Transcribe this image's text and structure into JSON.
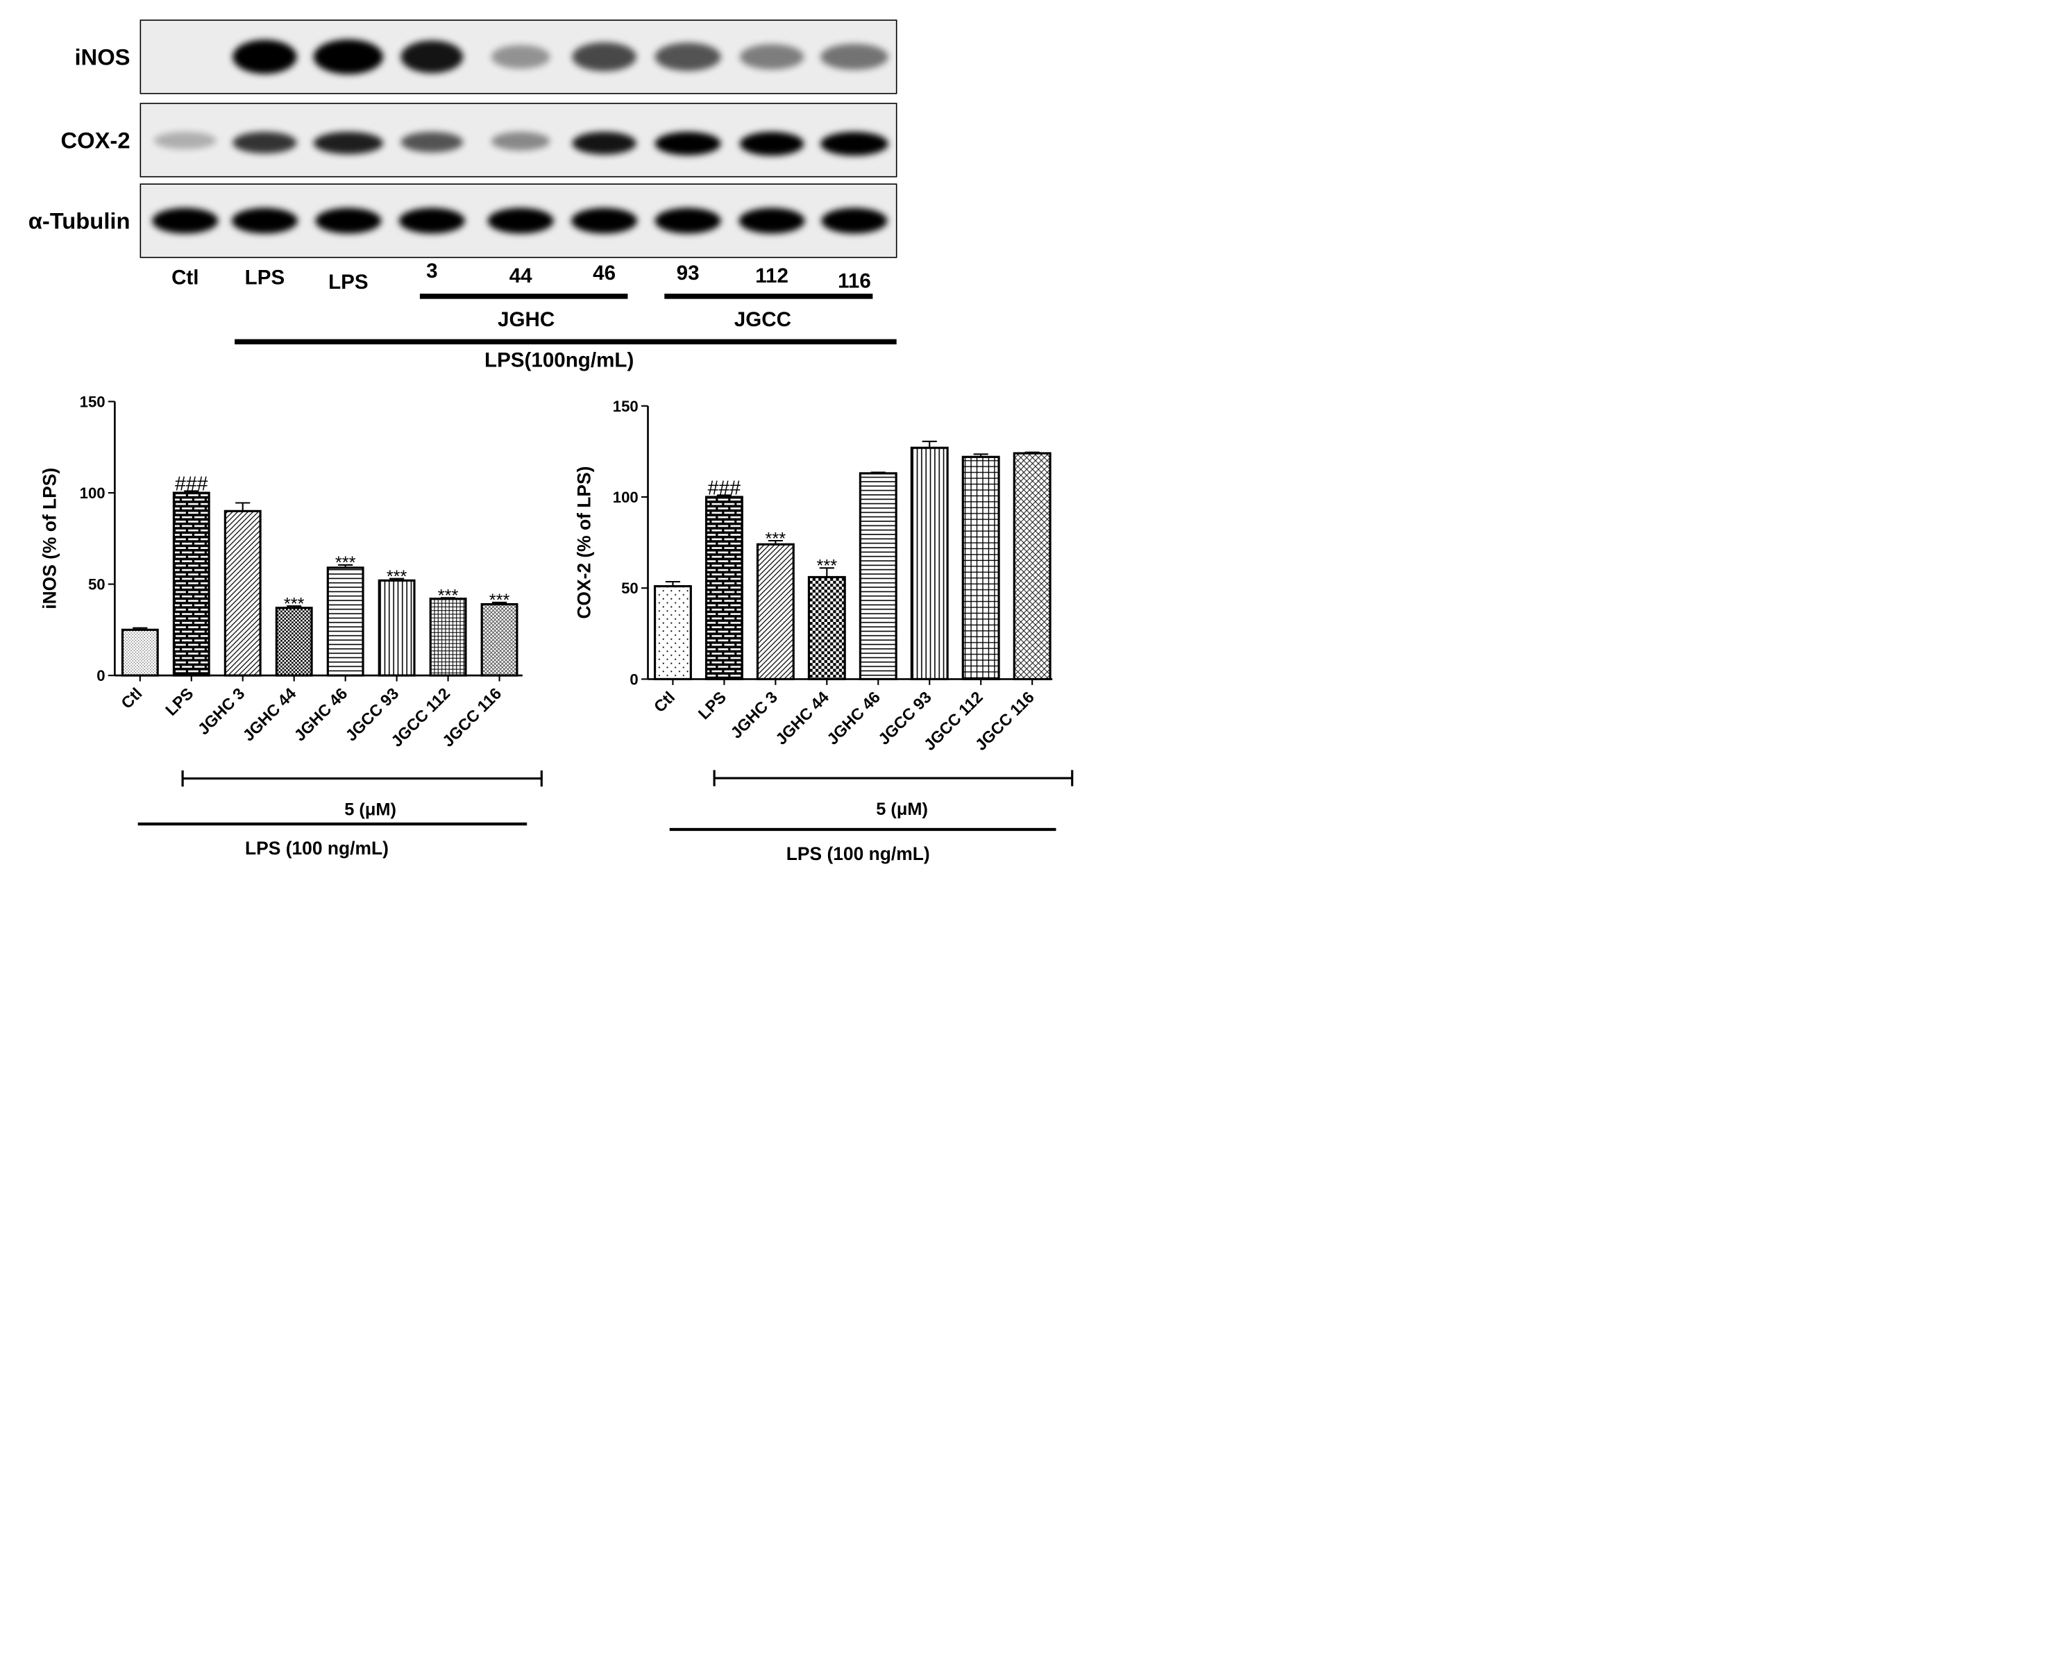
{
  "blot": {
    "rows": [
      {
        "label": "iNOS",
        "intensity": [
          0.0,
          0.95,
          1.0,
          0.85,
          0.25,
          0.6,
          0.55,
          0.35,
          0.4
        ]
      },
      {
        "label": "COX-2",
        "intensity": [
          0.12,
          0.7,
          0.8,
          0.55,
          0.3,
          0.85,
          0.95,
          1.0,
          1.0
        ]
      },
      {
        "label": "α-Tubulin",
        "intensity": [
          1.0,
          1.0,
          1.0,
          1.0,
          0.95,
          1.0,
          1.0,
          1.0,
          1.0
        ]
      }
    ],
    "lanes": [
      "Ctl",
      "LPS",
      "LPS",
      "3",
      "44",
      "46",
      "93",
      "112",
      "116"
    ],
    "groups": [
      "JGHC",
      "JGCC"
    ],
    "treatment_label": "LPS(100ng/mL)"
  },
  "chart_data": [
    {
      "type": "bar",
      "categories": [
        "Ctl",
        "LPS",
        "JGHC 3",
        "JGHC 44",
        "JGHC 46",
        "JGCC 93",
        "JGCC 112",
        "JGCC 116"
      ],
      "values": [
        25,
        100,
        90,
        37,
        59,
        52,
        42,
        39
      ],
      "errors": [
        1,
        1,
        4.5,
        1,
        1.5,
        1,
        0.5,
        1
      ],
      "annotations": [
        "",
        "###",
        "",
        "***",
        "***",
        "***",
        "***",
        "***"
      ],
      "patterns": [
        "dots-fine",
        "brick",
        "diag-right",
        "checker",
        "horizontal",
        "vertical",
        "grid",
        "crosshatch-fine"
      ],
      "ylabel": "iNOS (% of LPS)",
      "ylim": [
        0,
        150
      ],
      "yticks": [
        0,
        50,
        100,
        150
      ],
      "dose_label": "5 (μM)",
      "treatment_label": "LPS (100 ng/mL)"
    },
    {
      "type": "bar",
      "categories": [
        "Ctl",
        "LPS",
        "JGHC 3",
        "JGHC 44",
        "JGHC 46",
        "JGCC 93",
        "JGCC 112",
        "JGCC 116"
      ],
      "values": [
        51,
        100,
        74,
        56,
        113,
        127,
        122,
        124
      ],
      "errors": [
        2.5,
        1,
        2,
        5,
        0.5,
        3.5,
        1.5,
        0.5
      ],
      "annotations": [
        "",
        "###",
        "***",
        "***",
        "",
        "",
        "",
        ""
      ],
      "patterns": [
        "dots-sparse",
        "brick",
        "diag-right",
        "checker-coarse",
        "horizontal",
        "vertical",
        "grid-coarse",
        "diamond"
      ],
      "ylabel": "COX-2 (% of LPS)",
      "ylim": [
        0,
        150
      ],
      "yticks": [
        0,
        50,
        100,
        150
      ],
      "dose_label": "5 (μM)",
      "treatment_label": "LPS (100 ng/mL)"
    }
  ]
}
